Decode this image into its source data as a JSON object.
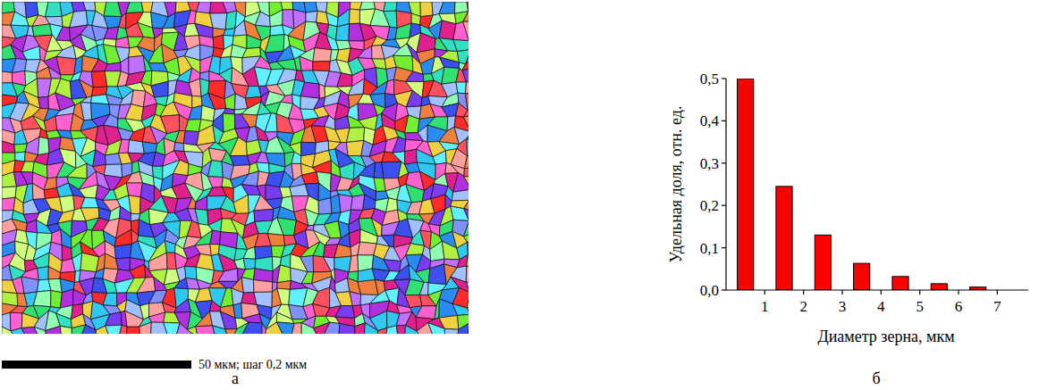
{
  "figure": {
    "panel_a": {
      "letter": "а",
      "scale_bar": "50 мкм; шаг 0,2 мкм"
    },
    "panel_b": {
      "letter": "б"
    }
  },
  "chart_data": {
    "type": "bar",
    "x_label": "Диаметр зерна, мкм",
    "y_label": "Удельная доля, отн. ед.",
    "x": [
      0.5,
      1.5,
      2.5,
      3.5,
      4.5,
      5.5,
      6.5
    ],
    "values": [
      0.5,
      0.245,
      0.13,
      0.063,
      0.032,
      0.015,
      0.007
    ],
    "color": "#ff0000",
    "xlim": [
      0,
      7.8
    ],
    "xticks": [
      1,
      2,
      3,
      4,
      5,
      6,
      7
    ],
    "ylim": [
      0,
      0.5
    ],
    "yticks": [
      {
        "value": 0,
        "label": "0,0"
      },
      {
        "value": 0.1,
        "label": "0,1"
      },
      {
        "value": 0.2,
        "label": "0,2"
      },
      {
        "value": 0.3,
        "label": "0,3"
      },
      {
        "value": 0.4,
        "label": "0,4"
      },
      {
        "value": 0.5,
        "label": "0,5"
      }
    ],
    "grid": false
  }
}
